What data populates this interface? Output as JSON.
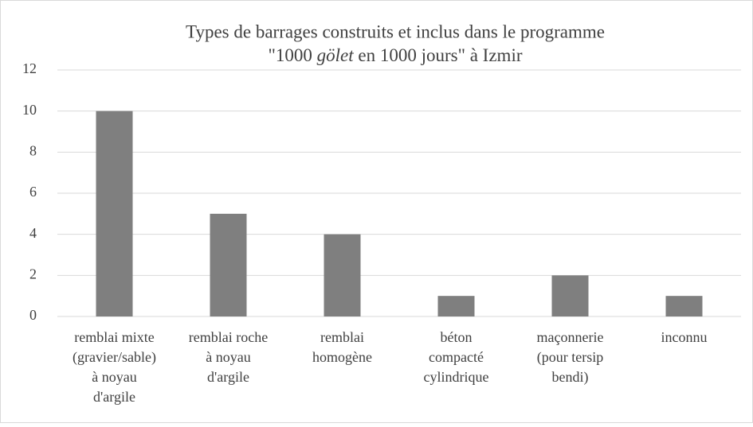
{
  "chart_data": {
    "type": "bar",
    "title": {
      "line1": "Types de barrages construits et inclus dans le programme",
      "line2": [
        "\"1000 ",
        "gölet",
        " en 1000 jours\" à Izmir"
      ]
    },
    "categories": [
      [
        "remblai mixte",
        "(gravier/sable)",
        "à noyau",
        "d'argile"
      ],
      [
        "remblai roche",
        "à noyau",
        "d'argile"
      ],
      [
        "remblai",
        "homogène"
      ],
      [
        "béton",
        "compacté",
        "cylindrique"
      ],
      [
        "maçonnerie",
        "(pour tersip",
        "bendi)"
      ],
      [
        "inconnu"
      ]
    ],
    "values": [
      10,
      5,
      4,
      1,
      2,
      1
    ],
    "color": "#7f7f7f",
    "ylim": [
      0,
      12
    ],
    "yticks": [
      0,
      2,
      4,
      6,
      8,
      10,
      12
    ],
    "grid": true
  }
}
